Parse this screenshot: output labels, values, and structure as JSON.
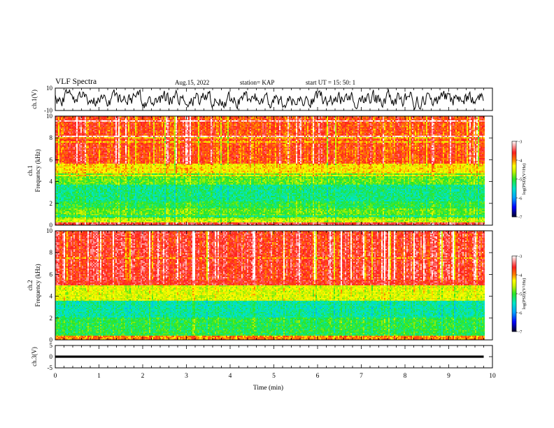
{
  "header": {
    "title": "VLF Spectra",
    "date": "Aug.15, 2022",
    "station": "station= KAP",
    "start": "start  UT =   15: 50: 1"
  },
  "chart_data": [
    {
      "type": "line",
      "panel": "ch1-waveform",
      "ylabel": "ch.1(V)",
      "ylim": [
        -10,
        10
      ],
      "yticks": [
        "10",
        "-10"
      ],
      "xlim": [
        0,
        10
      ],
      "x_end": 9.8,
      "pattern": "noise",
      "amplitude": 5.5
    },
    {
      "type": "heatmap",
      "panel": "ch1-spectrogram",
      "ylabel_lines": [
        "ch.1",
        "Frequency  (kHz)"
      ],
      "ylim": [
        0,
        10
      ],
      "yticks": [
        "0",
        "2",
        "4",
        "6",
        "8",
        "10"
      ],
      "xlim": [
        0,
        10
      ],
      "x_end": 9.8,
      "colorbar": {
        "label": "log(PSD)(V²/Hz)",
        "range": [
          -7,
          -3
        ],
        "ticks": [
          "-3",
          "-4",
          "-5",
          "-6",
          "-7"
        ]
      },
      "bands_khz": [
        {
          "from": 0,
          "to": 0.3,
          "level": -3.5
        },
        {
          "from": 0.3,
          "to": 0.7,
          "level": -4.6
        },
        {
          "from": 0.7,
          "to": 1.6,
          "level": -4.9
        },
        {
          "from": 1.6,
          "to": 2.2,
          "level": -5.1
        },
        {
          "from": 2.2,
          "to": 3.6,
          "level": -5.3
        },
        {
          "from": 3.6,
          "to": 4.8,
          "level": -4.9
        },
        {
          "from": 4.8,
          "to": 5.6,
          "level": -4.3
        },
        {
          "from": 5.6,
          "to": 10,
          "level": -3.8
        }
      ]
    },
    {
      "type": "heatmap",
      "panel": "ch2-spectrogram",
      "ylabel_lines": [
        "ch.2",
        "Frequency  (kHz)"
      ],
      "ylim": [
        0,
        10
      ],
      "yticks": [
        "0",
        "2",
        "4",
        "6",
        "8",
        "10"
      ],
      "xlim": [
        0,
        10
      ],
      "x_end": 9.8,
      "colorbar": {
        "label": "log(PSD)(V²/Hz)",
        "range": [
          -7,
          -3
        ],
        "ticks": [
          "-3",
          "-4",
          "-5",
          "-6",
          "-7"
        ]
      },
      "bands_khz": [
        {
          "from": 0,
          "to": 0.4,
          "level": -4.0
        },
        {
          "from": 0.4,
          "to": 2.0,
          "level": -5.1
        },
        {
          "from": 2.0,
          "to": 3.6,
          "level": -5.4
        },
        {
          "from": 3.6,
          "to": 5.0,
          "level": -4.5
        },
        {
          "from": 5.0,
          "to": 10,
          "level": -3.6
        }
      ]
    },
    {
      "type": "line",
      "panel": "ch3-waveform",
      "ylabel": "ch.3(V)",
      "ylim": [
        -5,
        5
      ],
      "yticks": [
        "5",
        "0",
        "-5"
      ],
      "xlim": [
        0,
        10
      ],
      "x_end": 9.8,
      "pattern": "flat",
      "level": 0,
      "thickness_v": 1.0
    }
  ],
  "xaxis": {
    "label": "Time  (min)",
    "ticks": [
      "0",
      "1",
      "2",
      "3",
      "4",
      "5",
      "6",
      "7",
      "8",
      "9",
      "10"
    ]
  }
}
